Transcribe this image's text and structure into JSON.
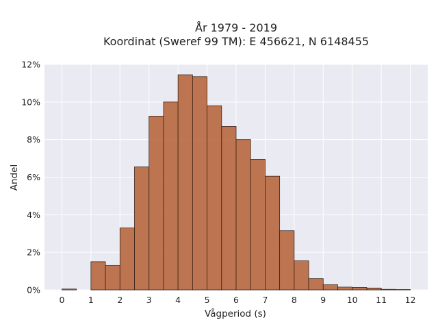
{
  "chart_data": {
    "type": "bar",
    "title_lines": [
      "År 1979 - 2019",
      "Koordinat (Sweref 99 TM): E 456621, N 6148455"
    ],
    "xlabel": "Vågperiod (s)",
    "ylabel": "Andel",
    "xlim": [
      -0.6,
      12.6
    ],
    "ylim": [
      0,
      12
    ],
    "x_ticks": [
      0,
      1,
      2,
      3,
      4,
      5,
      6,
      7,
      8,
      9,
      10,
      11,
      12
    ],
    "y_ticks": [
      0,
      2,
      4,
      6,
      8,
      10,
      12
    ],
    "y_tick_labels": [
      "0%",
      "2%",
      "4%",
      "6%",
      "8%",
      "10%",
      "12%"
    ],
    "bin_width": 0.5,
    "bins": [
      {
        "x0": 0.0,
        "value": 0.05
      },
      {
        "x0": 1.0,
        "value": 1.5
      },
      {
        "x0": 1.5,
        "value": 1.3
      },
      {
        "x0": 2.0,
        "value": 3.3
      },
      {
        "x0": 2.5,
        "value": 6.55
      },
      {
        "x0": 3.0,
        "value": 9.25
      },
      {
        "x0": 3.5,
        "value": 10.0
      },
      {
        "x0": 4.0,
        "value": 11.45
      },
      {
        "x0": 4.5,
        "value": 11.35
      },
      {
        "x0": 5.0,
        "value": 9.8
      },
      {
        "x0": 5.5,
        "value": 8.7
      },
      {
        "x0": 6.0,
        "value": 8.0
      },
      {
        "x0": 6.5,
        "value": 6.95
      },
      {
        "x0": 7.0,
        "value": 6.05
      },
      {
        "x0": 7.5,
        "value": 3.15
      },
      {
        "x0": 8.0,
        "value": 1.55
      },
      {
        "x0": 8.5,
        "value": 0.6
      },
      {
        "x0": 9.0,
        "value": 0.28
      },
      {
        "x0": 9.5,
        "value": 0.15
      },
      {
        "x0": 10.0,
        "value": 0.13
      },
      {
        "x0": 10.5,
        "value": 0.1
      },
      {
        "x0": 11.0,
        "value": 0.03
      },
      {
        "x0": 11.5,
        "value": 0.02
      }
    ],
    "grid": true,
    "colors": {
      "bar": "#b8683f",
      "bar_edge": "#3a2418",
      "plot_background": "#eaeaf2",
      "grid": "#ffffff"
    }
  }
}
